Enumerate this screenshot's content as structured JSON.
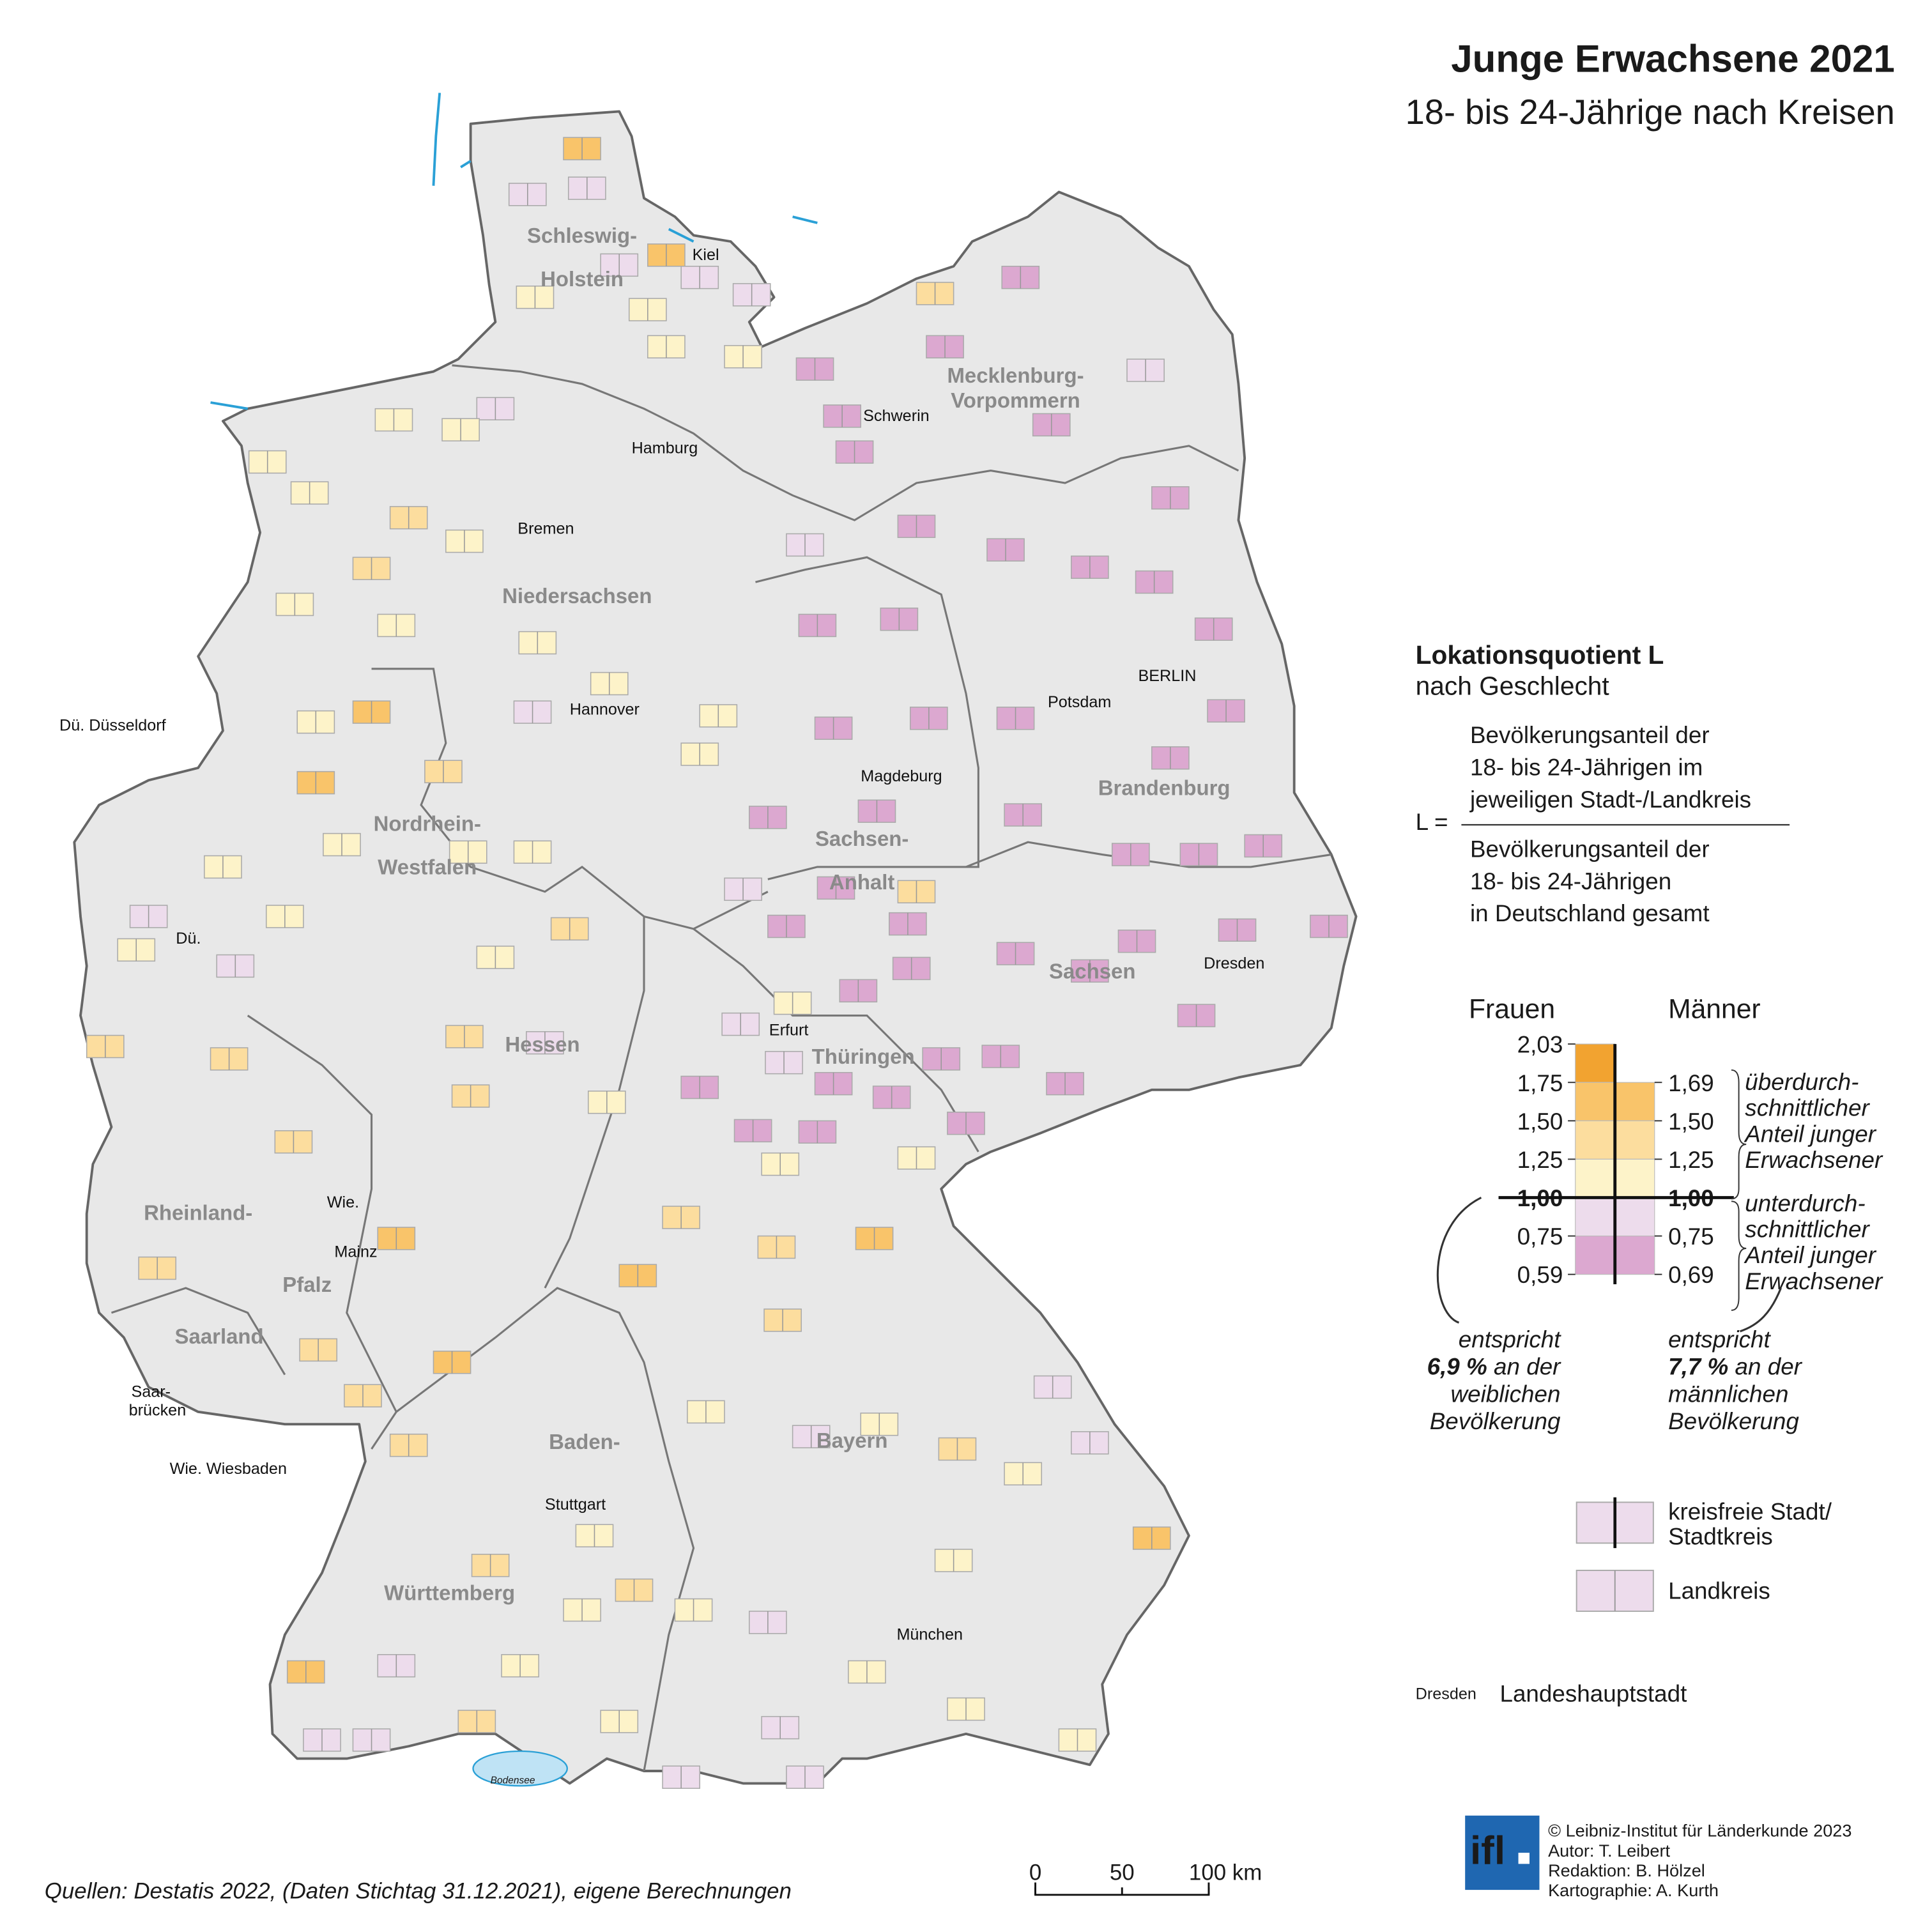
{
  "title": "Junge Erwachsene 2021",
  "subtitle": "18- bis 24-Jährige nach Kreisen",
  "states": [
    [
      "Schleswig-",
      "Holstein"
    ],
    [
      "Mecklenburg-",
      "Vorpommern"
    ],
    [
      "Niedersachsen"
    ],
    [
      "Nordrhein-",
      "Westfalen"
    ],
    [
      "Sachsen-",
      "Anhalt"
    ],
    [
      "Brandenburg"
    ],
    [
      "Hessen"
    ],
    [
      "Thüringen"
    ],
    [
      "Sachsen"
    ],
    [
      "Rheinland-"
    ],
    [
      "Pfalz"
    ],
    [
      "Saarland"
    ],
    [
      "Baden-"
    ],
    [
      "Württemberg"
    ],
    [
      "Bayern"
    ]
  ],
  "cities": [
    "Kiel",
    "Hamburg",
    "Schwerin",
    "Bremen",
    "Hannover",
    "BERLIN",
    "Potsdam",
    "Magdeburg",
    "Dü.",
    "Erfurt",
    "Dresden",
    "Wie.",
    "Mainz",
    "Saar-",
    "brücken",
    "Stuttgart",
    "München"
  ],
  "abbreviations": [
    "Dü.  Düsseldorf",
    "Wie. Wiesbaden"
  ],
  "water": "Bodensee",
  "legend": {
    "title": "Lokationsquotient  L",
    "subtitle": "nach Geschlecht",
    "formula_left": "L =",
    "numerator": [
      "Bevölkerungsanteil der",
      "18- bis 24-Jährigen im",
      "jeweiligen Stadt-/Landkreis"
    ],
    "denominator": [
      "Bevölkerungsanteil der",
      "18- bis 24-Jährigen",
      "in Deutschland gesamt"
    ],
    "women": "Frauen",
    "men": "Männer",
    "women_ticks": [
      {
        "value": 2.03,
        "label": "2,03"
      },
      {
        "value": 1.75,
        "label": "1,75"
      },
      {
        "value": 1.5,
        "label": "1,50"
      },
      {
        "value": 1.25,
        "label": "1,25"
      },
      {
        "value": 1,
        "label": "1,00"
      },
      {
        "value": 0.75,
        "label": "0,75"
      },
      {
        "value": 0.59,
        "label": "0,59"
      }
    ],
    "men_ticks": [
      {
        "value": 1.69,
        "label": "1,69"
      },
      {
        "value": 1.5,
        "label": "1,50"
      },
      {
        "value": 1.25,
        "label": "1,25"
      },
      {
        "value": 1,
        "label": "1,00"
      },
      {
        "value": 0.75,
        "label": "0,75"
      },
      {
        "value": 0.69,
        "label": "0,69"
      }
    ],
    "colors": [
      "#f2a330",
      "#f9c46a",
      "#fcdd9e",
      "#fdf3c9",
      "#eddcec",
      "#dca8d0"
    ],
    "above": [
      "überdurch-",
      "schnittlicher",
      "Anteil junger",
      "Erwachsener"
    ],
    "below": [
      "unterdurch-",
      "schnittlicher",
      "Anteil junger",
      "Erwachsener"
    ],
    "women_note": [
      "entspricht",
      "6,9 %",
      "an der",
      "weiblichen",
      "Bevölkerung"
    ],
    "men_note": [
      "entspricht",
      "7,7 %",
      "an der",
      "männlichen",
      "Bevölkerung"
    ],
    "symbol_city": [
      "kreisfreie Stadt/",
      "Stadtkreis"
    ],
    "symbol_district": "Landkreis",
    "capital_example": "Dresden",
    "capital_label": "Landeshauptstadt"
  },
  "scale": {
    "ticks": [
      0,
      50,
      {
        "value": 100,
        "label": "100 km"
      }
    ]
  },
  "source": "Quellen: Destatis 2022, (Daten Stichtag 31.12.2021), eigene Berechnungen",
  "logo": "ifl",
  "credits": [
    "© Leibniz-Institut für Länderkunde 2023",
    "Autor: T. Leibert",
    "Redaktion: B. Hölzel",
    "Kartographie: A. Kurth"
  ]
}
